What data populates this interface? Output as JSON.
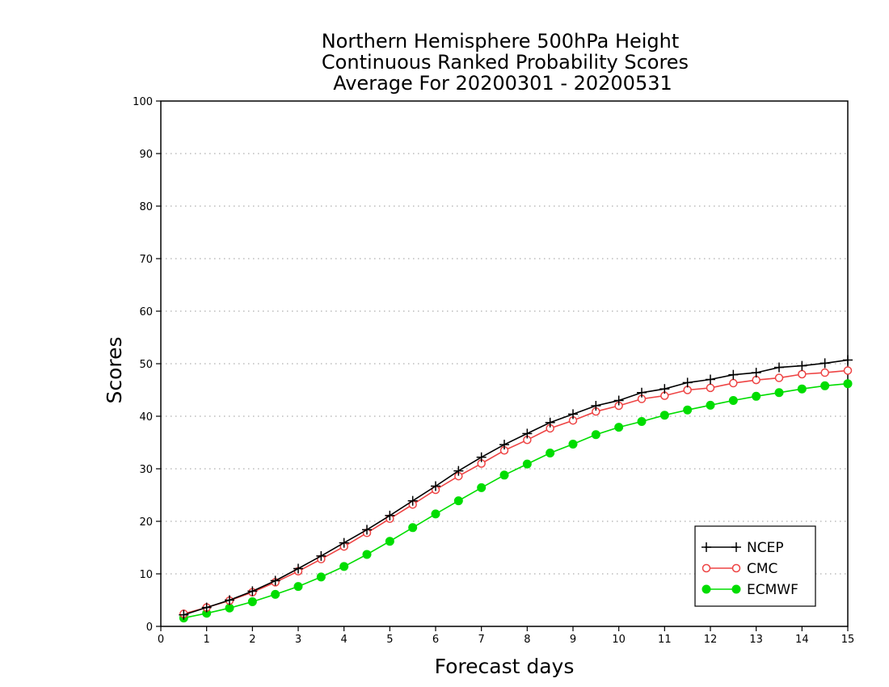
{
  "chart_data": {
    "type": "line",
    "title_lines": [
      "Northern Hemisphere 500hPa Height",
      "Continuous Ranked Probability Scores",
      "Average For 20200301 - 20200531"
    ],
    "xlabel": "Forecast days",
    "ylabel": "Scores",
    "xlim": [
      0,
      15
    ],
    "ylim": [
      0,
      100
    ],
    "x_ticks": [
      0,
      1,
      2,
      3,
      4,
      5,
      6,
      7,
      8,
      9,
      10,
      11,
      12,
      13,
      14,
      15
    ],
    "y_ticks": [
      0,
      10,
      20,
      30,
      40,
      50,
      60,
      70,
      80,
      90,
      100
    ],
    "grid": "horizontal dotted",
    "legend_position": "bottom-right",
    "x": [
      0.5,
      1,
      1.5,
      2,
      2.5,
      3,
      3.5,
      4,
      4.5,
      5,
      5.5,
      6,
      6.5,
      7,
      7.5,
      8,
      8.5,
      9,
      9.5,
      10,
      10.5,
      11,
      11.5,
      12,
      12.5,
      13,
      13.5,
      14,
      14.5,
      15
    ],
    "series": [
      {
        "name": "NCEP",
        "color": "#000000",
        "marker": "plus",
        "values": [
          2.2,
          3.6,
          5.0,
          6.7,
          8.7,
          11.0,
          13.4,
          15.9,
          18.4,
          21.1,
          23.9,
          26.7,
          29.6,
          32.2,
          34.6,
          36.7,
          38.8,
          40.4,
          42.0,
          43.0,
          44.5,
          45.2,
          46.4,
          47.0,
          47.9,
          48.3,
          49.3,
          49.6,
          50.1,
          50.7
        ]
      },
      {
        "name": "CMC",
        "color": "#ee4444",
        "marker": "open-circle",
        "values": [
          2.4,
          3.6,
          4.9,
          6.5,
          8.4,
          10.5,
          12.8,
          15.2,
          17.8,
          20.5,
          23.2,
          26.0,
          28.6,
          31.0,
          33.5,
          35.5,
          37.7,
          39.2,
          40.9,
          42.0,
          43.3,
          43.9,
          45.0,
          45.4,
          46.3,
          46.9,
          47.3,
          48.0,
          48.3,
          48.7
        ]
      },
      {
        "name": "ECMWF",
        "color": "#00dd00",
        "marker": "filled-circle",
        "values": [
          1.6,
          2.5,
          3.5,
          4.7,
          6.1,
          7.6,
          9.4,
          11.4,
          13.7,
          16.2,
          18.8,
          21.4,
          23.9,
          26.4,
          28.8,
          30.9,
          33.0,
          34.7,
          36.5,
          37.9,
          39.0,
          40.2,
          41.2,
          42.1,
          43.0,
          43.8,
          44.5,
          45.2,
          45.8,
          46.2
        ]
      }
    ]
  }
}
